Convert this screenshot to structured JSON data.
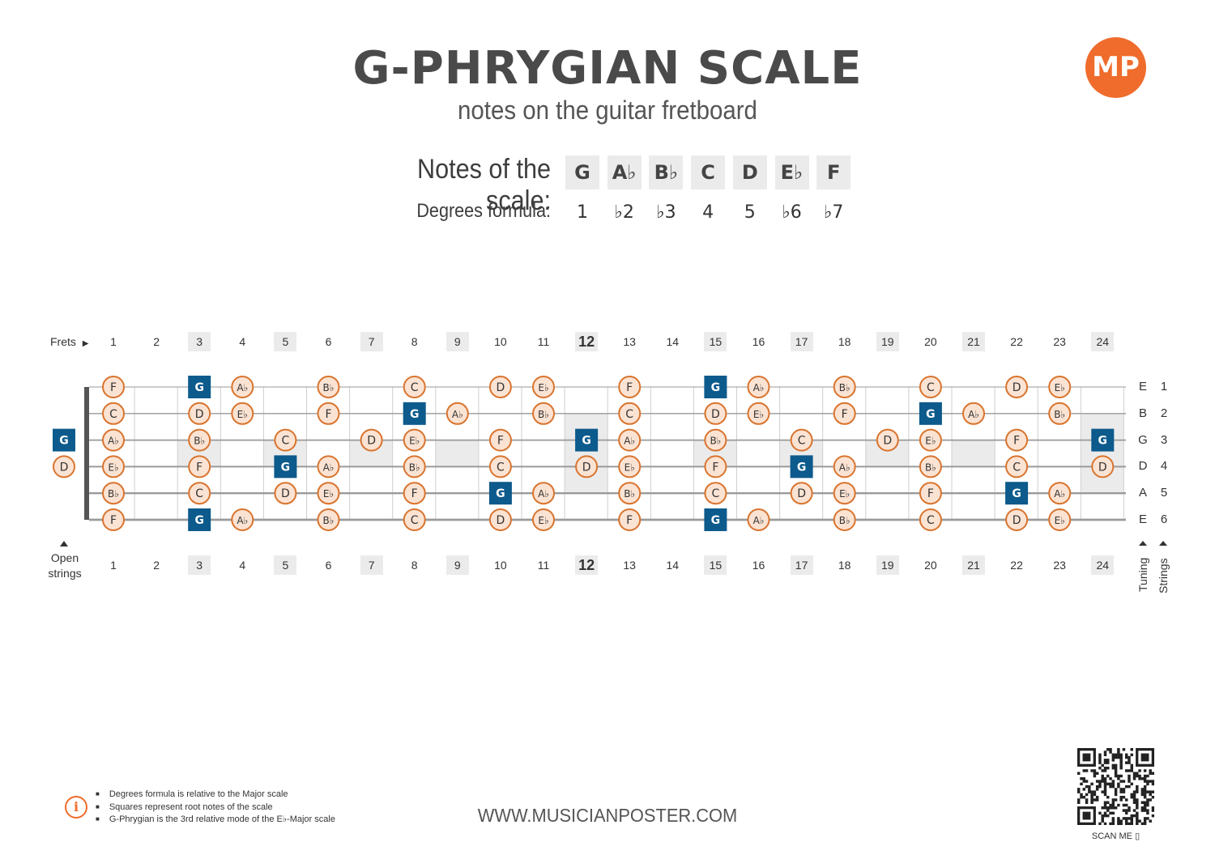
{
  "header": {
    "title": "G-PHRYGIAN SCALE",
    "subtitle": "notes on the guitar fretboard",
    "logo_text": "MP",
    "brand_color": "#ef6c2c"
  },
  "scale": {
    "notes_label": "Notes of the scale:",
    "degrees_label": "Degrees formula:",
    "notes": [
      "G",
      "A♭",
      "B♭",
      "C",
      "D",
      "E♭",
      "F"
    ],
    "degrees": [
      "1",
      "♭2",
      "♭3",
      "4",
      "5",
      "♭6",
      "♭7"
    ]
  },
  "fretboard": {
    "frets_label": "Frets",
    "open_label_line1": "Open",
    "open_label_line2": "strings",
    "tuning_label": "Tuning",
    "strings_label": "Strings",
    "fret_numbers": [
      "1",
      "2",
      "3",
      "4",
      "5",
      "6",
      "7",
      "8",
      "9",
      "10",
      "11",
      "12",
      "13",
      "14",
      "15",
      "16",
      "17",
      "18",
      "19",
      "20",
      "21",
      "22",
      "23",
      "24"
    ],
    "shaded_frets": [
      3,
      5,
      7,
      9,
      12,
      15,
      17,
      19,
      21,
      24
    ],
    "strings": [
      {
        "tuning": "E",
        "number": "1",
        "open": "",
        "notes": [
          "F",
          "",
          "G",
          "A♭",
          "",
          "B♭",
          "",
          "C",
          "",
          "D",
          "E♭",
          "",
          "F",
          "",
          "G",
          "A♭",
          "",
          "B♭",
          "",
          "C",
          "",
          "D",
          "E♭",
          ""
        ]
      },
      {
        "tuning": "B",
        "number": "2",
        "open": "",
        "notes": [
          "C",
          "",
          "D",
          "E♭",
          "",
          "F",
          "",
          "G",
          "A♭",
          "",
          "B♭",
          "",
          "C",
          "",
          "D",
          "E♭",
          "",
          "F",
          "",
          "G",
          "A♭",
          "",
          "B♭",
          ""
        ]
      },
      {
        "tuning": "G",
        "number": "3",
        "open": "G",
        "notes": [
          "A♭",
          "",
          "B♭",
          "",
          "C",
          "",
          "D",
          "E♭",
          "",
          "F",
          "",
          "G",
          "A♭",
          "",
          "B♭",
          "",
          "C",
          "",
          "D",
          "E♭",
          "",
          "F",
          "",
          "G"
        ]
      },
      {
        "tuning": "D",
        "number": "4",
        "open": "D",
        "notes": [
          "E♭",
          "",
          "F",
          "",
          "G",
          "A♭",
          "",
          "B♭",
          "",
          "C",
          "",
          "D",
          "E♭",
          "",
          "F",
          "",
          "G",
          "A♭",
          "",
          "B♭",
          "",
          "C",
          "",
          "D"
        ]
      },
      {
        "tuning": "A",
        "number": "5",
        "open": "",
        "notes": [
          "B♭",
          "",
          "C",
          "",
          "D",
          "E♭",
          "",
          "F",
          "",
          "G",
          "A♭",
          "",
          "B♭",
          "",
          "C",
          "",
          "D",
          "E♭",
          "",
          "F",
          "",
          "G",
          "A♭",
          ""
        ]
      },
      {
        "tuning": "E",
        "number": "6",
        "open": "",
        "notes": [
          "F",
          "",
          "G",
          "A♭",
          "",
          "B♭",
          "",
          "C",
          "",
          "D",
          "E♭",
          "",
          "F",
          "",
          "G",
          "A♭",
          "",
          "B♭",
          "",
          "C",
          "",
          "D",
          "E♭",
          ""
        ]
      }
    ],
    "root_note": "G",
    "root_color": "#0d5a8c",
    "note_fill": "#fbe3d3",
    "note_stroke": "#d9742e"
  },
  "footer": {
    "info": [
      "Degrees formula is relative to the Major scale",
      "Squares represent root notes of the scale",
      "G-Phrygian is the 3rd relative mode of the E♭-Major scale"
    ],
    "url": "WWW.MUSICIANPOSTER.COM",
    "scan_label": "SCAN ME"
  }
}
